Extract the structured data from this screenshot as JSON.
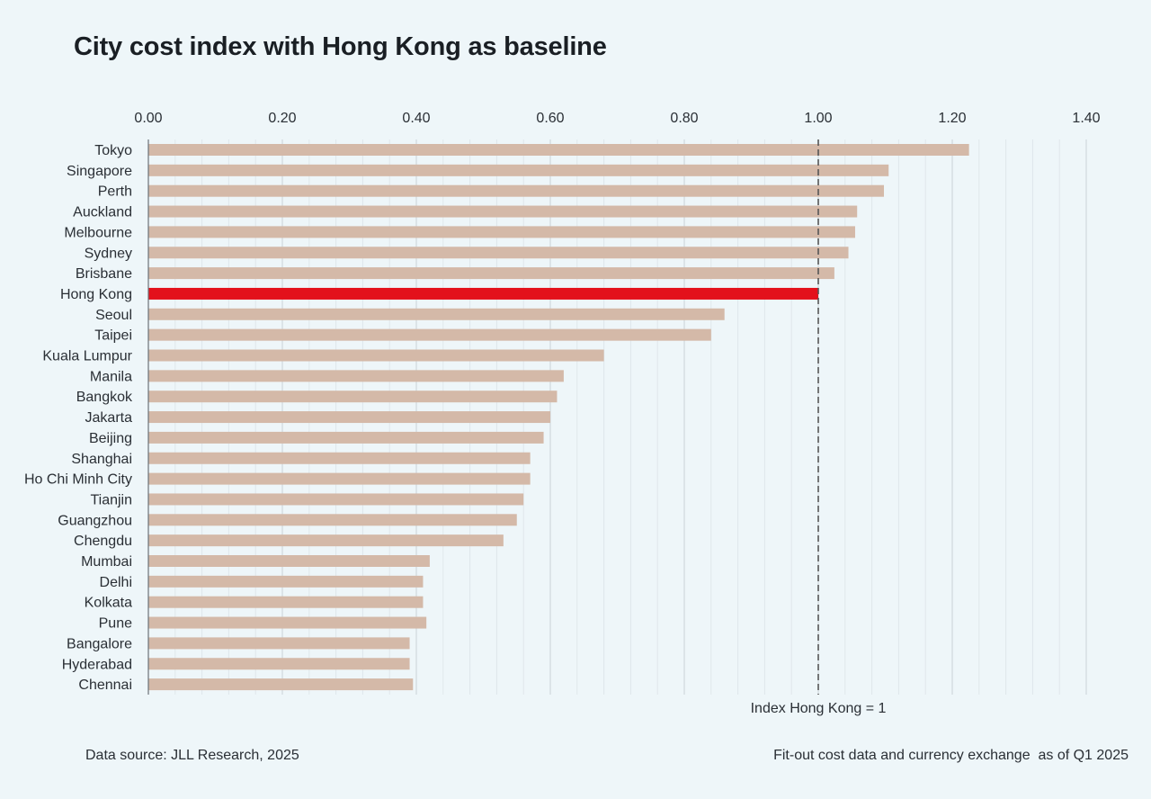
{
  "title": "City cost index with Hong Kong as baseline",
  "footer": {
    "source": "Data source: JLL Research, 2025",
    "note": "Fit-out cost data and currency exchange  as of Q1 2025"
  },
  "colors": {
    "bar": "#d4b9a8",
    "highlight": "#e3111b",
    "grid": "#c9d2d7",
    "minor_grid": "#dfe7eb",
    "baseline": "#555555"
  },
  "chart_data": {
    "type": "bar",
    "orientation": "horizontal",
    "title": "City cost index with Hong Kong as baseline",
    "xlim": [
      0,
      1.4
    ],
    "xticks": [
      "0.00",
      "0.20",
      "0.40",
      "0.60",
      "0.80",
      "1.00",
      "1.20",
      "1.40"
    ],
    "grid": true,
    "categories": [
      "Tokyo",
      "Singapore",
      "Perth",
      "Auckland",
      "Melbourne",
      "Sydney",
      "Brisbane",
      "Hong Kong",
      "Seoul",
      "Taipei",
      "Kuala Lumpur",
      "Manila",
      "Bangkok",
      "Jakarta",
      "Beijing",
      "Shanghai",
      "Ho Chi Minh City",
      "Tianjin",
      "Guangzhou",
      "Chengdu",
      "Mumbai",
      "Delhi",
      "Kolkata",
      "Pune",
      "Bangalore",
      "Hyderabad",
      "Chennai"
    ],
    "values": [
      1.225,
      1.105,
      1.098,
      1.058,
      1.055,
      1.045,
      1.024,
      1.0,
      0.86,
      0.84,
      0.68,
      0.62,
      0.61,
      0.6,
      0.59,
      0.57,
      0.57,
      0.56,
      0.55,
      0.53,
      0.42,
      0.41,
      0.41,
      0.415,
      0.39,
      0.39,
      0.395
    ],
    "highlight": "Hong Kong",
    "reference_line": {
      "value": 1.0,
      "label": "Index Hong Kong = 1"
    }
  }
}
